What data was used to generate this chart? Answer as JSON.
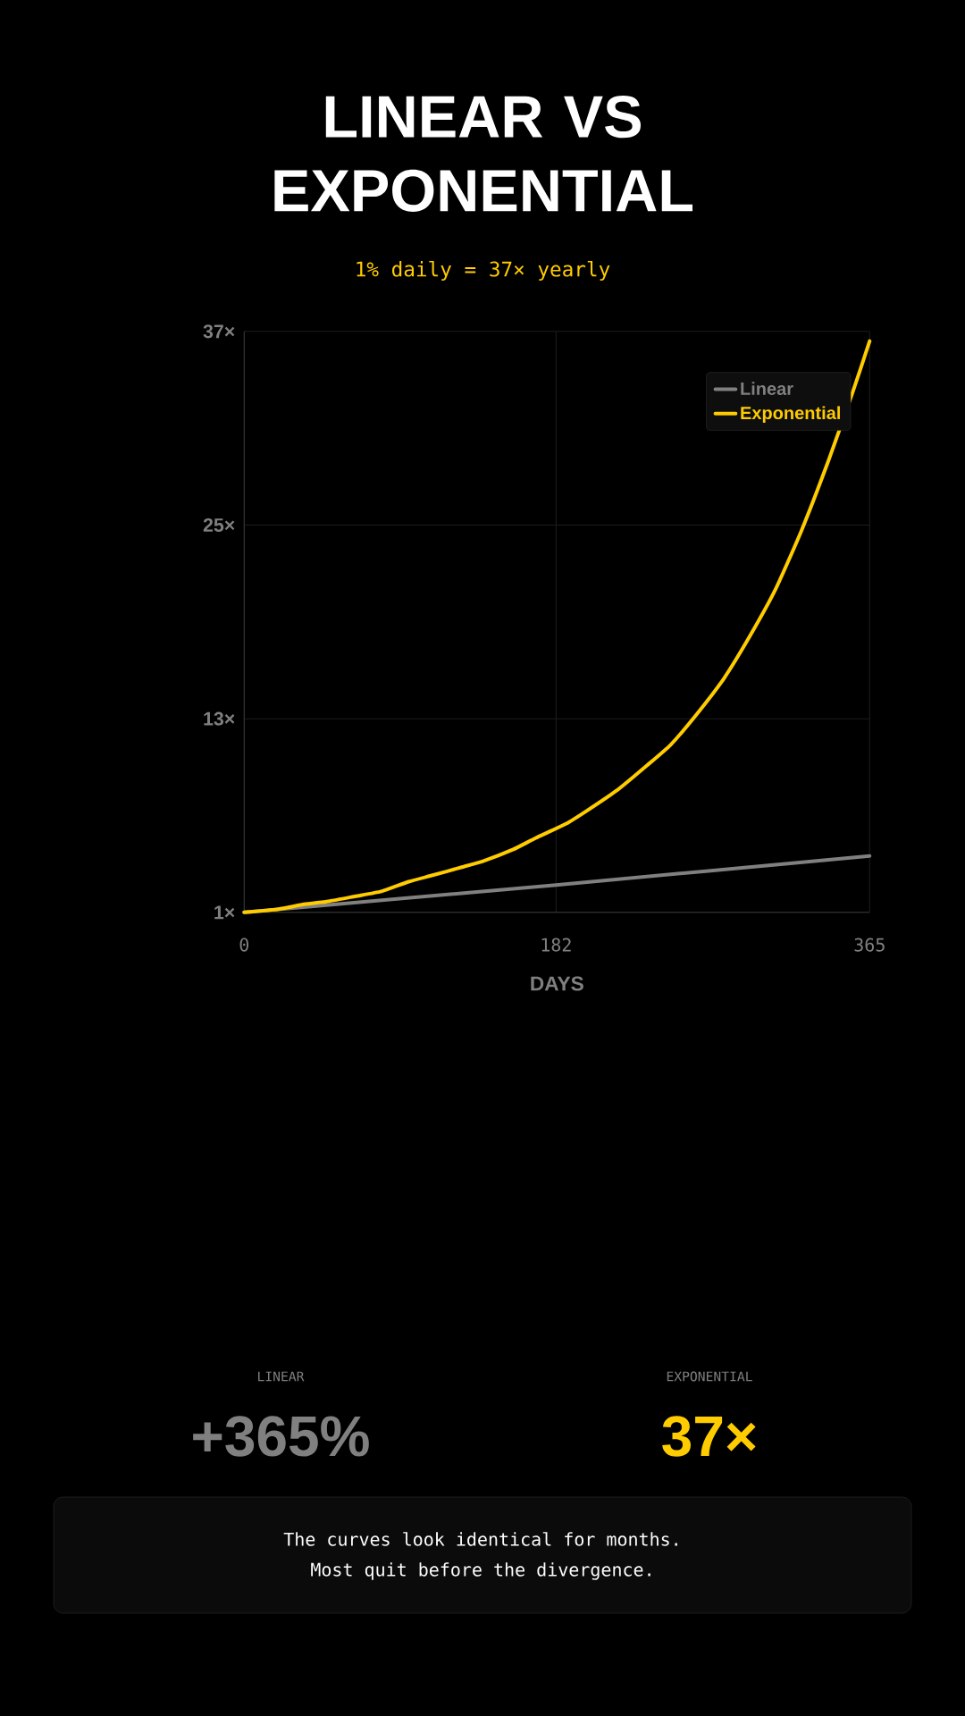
{
  "chart_data": {
    "type": "line",
    "title": "LINEAR VS EXPONENTIAL",
    "subtitle": "1% daily = 37× yearly",
    "xlabel": "DAYS",
    "xlim": [
      0,
      365
    ],
    "ylim": [
      1,
      37
    ],
    "xticks": [
      0,
      182,
      365
    ],
    "yticks": [
      {
        "value": 1,
        "label": "1×"
      },
      {
        "value": 13,
        "label": "13×"
      },
      {
        "value": 25,
        "label": "25×"
      },
      {
        "value": 37,
        "label": "37×"
      }
    ],
    "grid": true,
    "legend": "top right",
    "marker": "none",
    "line_style": "solid",
    "series": [
      {
        "name": "Linear",
        "color": "#808080",
        "x": [
          0,
          182,
          365
        ],
        "values": [
          1,
          2.7,
          4.5
        ]
      },
      {
        "name": "Exponential",
        "color": "#ffcc00",
        "x": [
          0,
          20,
          35,
          50,
          65,
          80,
          96,
          110,
          127,
          140,
          157,
          170,
          188,
          200,
          218,
          235,
          249,
          265,
          280,
          295,
          310,
          325,
          341,
          355,
          365
        ],
        "values": [
          1,
          1.2,
          1.5,
          1.7,
          2.0,
          2.3,
          2.9,
          3.3,
          3.8,
          4.2,
          4.9,
          5.6,
          6.5,
          7.3,
          8.6,
          10.1,
          11.4,
          13.4,
          15.5,
          18.1,
          21.0,
          24.6,
          29.0,
          33.2,
          36.4
        ]
      }
    ],
    "annotations": [
      "LINEAR",
      "+365%",
      "EXPONENTIAL",
      "37×",
      "The curves look identical for months.",
      "Most quit before the divergence."
    ]
  }
}
